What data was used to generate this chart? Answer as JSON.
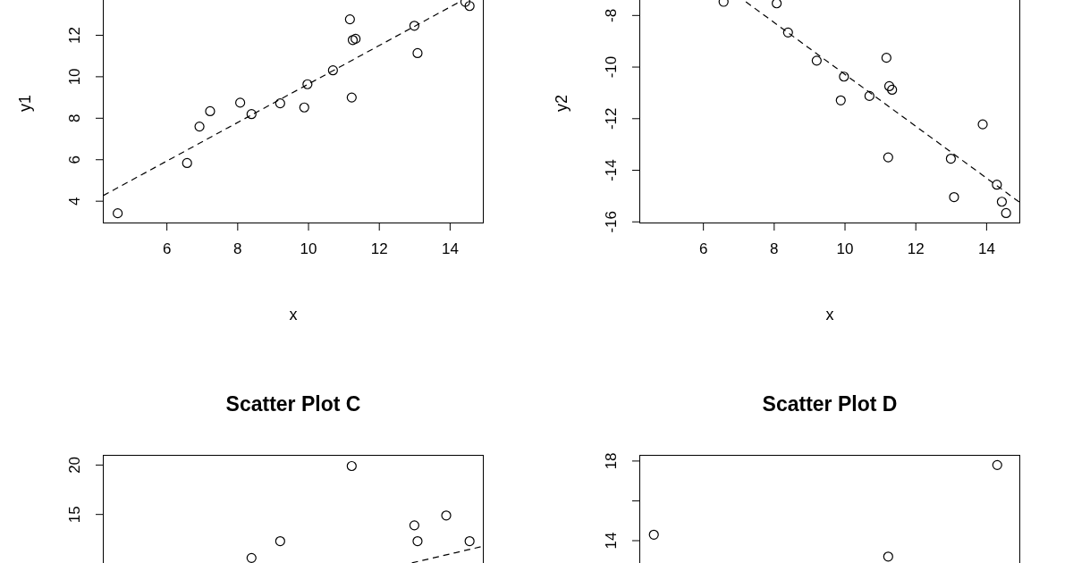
{
  "chart_data": [
    {
      "type": "scatter",
      "xlabel": "x",
      "ylabel": "y1",
      "xlim": [
        4.19,
        14.95
      ],
      "ylim": [
        2.93,
        13.7
      ],
      "xticks": [
        6,
        8,
        10,
        12,
        14
      ],
      "yticks": [
        4,
        6,
        8,
        10,
        12
      ],
      "grid": false,
      "series": [
        {
          "type": "scatter",
          "marker": "circle",
          "color": "#000000",
          "x": [
            4.61,
            6.57,
            6.92,
            7.22,
            8.07,
            8.39,
            9.2,
            9.88,
            9.97,
            10.69,
            11.17,
            11.22,
            11.25,
            11.33,
            12.99,
            13.08,
            14.43,
            14.55
          ],
          "values": [
            3.42,
            5.84,
            7.6,
            8.34,
            8.75,
            8.2,
            8.72,
            8.52,
            9.64,
            10.31,
            12.77,
            9.0,
            11.77,
            11.83,
            12.46,
            11.14,
            13.61,
            13.41
          ]
        },
        {
          "type": "line",
          "color": "#000000",
          "line_style": "dashed",
          "x": [
            4.2,
            14.32
          ],
          "values": [
            4.27,
            13.66
          ]
        }
      ]
    },
    {
      "type": "scatter",
      "xlabel": "x",
      "ylabel": "y2",
      "xlim": [
        4.19,
        14.95
      ],
      "ylim": [
        -16.06,
        -7.4
      ],
      "xticks": [
        6,
        8,
        10,
        12,
        14
      ],
      "yticks": [
        -16,
        -14,
        -12,
        -10,
        -8
      ],
      "grid": false,
      "series": [
        {
          "type": "scatter",
          "marker": "circle",
          "color": "#000000",
          "x": [
            6.57,
            8.07,
            8.39,
            9.2,
            9.97,
            9.88,
            10.69,
            11.17,
            11.25,
            11.33,
            11.22,
            12.99,
            13.08,
            13.89,
            14.29,
            14.43,
            14.55
          ],
          "values": [
            -7.47,
            -7.53,
            -8.66,
            -9.75,
            -10.37,
            -11.29,
            -11.12,
            -9.64,
            -10.74,
            -10.88,
            -13.5,
            -13.55,
            -15.04,
            -12.22,
            -14.56,
            -15.22,
            -15.66
          ]
        },
        {
          "type": "line",
          "color": "#000000",
          "line_style": "dashed",
          "x": [
            7.2,
            14.95
          ],
          "values": [
            -7.47,
            -15.26
          ]
        }
      ]
    },
    {
      "type": "scatter",
      "title": "Scatter Plot C",
      "xlim": [
        4.19,
        14.95
      ],
      "ylim": [
        8.28,
        21.03
      ],
      "yticks": [
        15,
        20
      ],
      "tick_labels": "y",
      "grid": false,
      "series": [
        {
          "type": "scatter",
          "marker": "circle",
          "color": "#000000",
          "x": [
            8.39,
            9.2,
            11.22,
            12.99,
            13.08,
            13.89,
            14.55
          ],
          "values": [
            10.6,
            12.3,
            19.9,
            13.9,
            12.3,
            14.9,
            12.3
          ]
        },
        {
          "type": "line",
          "color": "#000000",
          "line_style": "dashed",
          "x": [
            12.92,
            14.95
          ],
          "values": [
            10.1,
            11.8
          ]
        }
      ]
    },
    {
      "type": "scatter",
      "title": "Scatter Plot D",
      "xlim": [
        4.19,
        14.95
      ],
      "ylim": [
        11.98,
        18.31
      ],
      "yticks": [
        14,
        {
          "value": 16,
          "label": null
        },
        18
      ],
      "tick_labels": "y",
      "grid": false,
      "series": [
        {
          "type": "scatter",
          "marker": "circle",
          "color": "#000000",
          "x": [
            4.6,
            11.22,
            14.3
          ],
          "values": [
            14.3,
            13.2,
            17.8
          ]
        }
      ]
    }
  ]
}
